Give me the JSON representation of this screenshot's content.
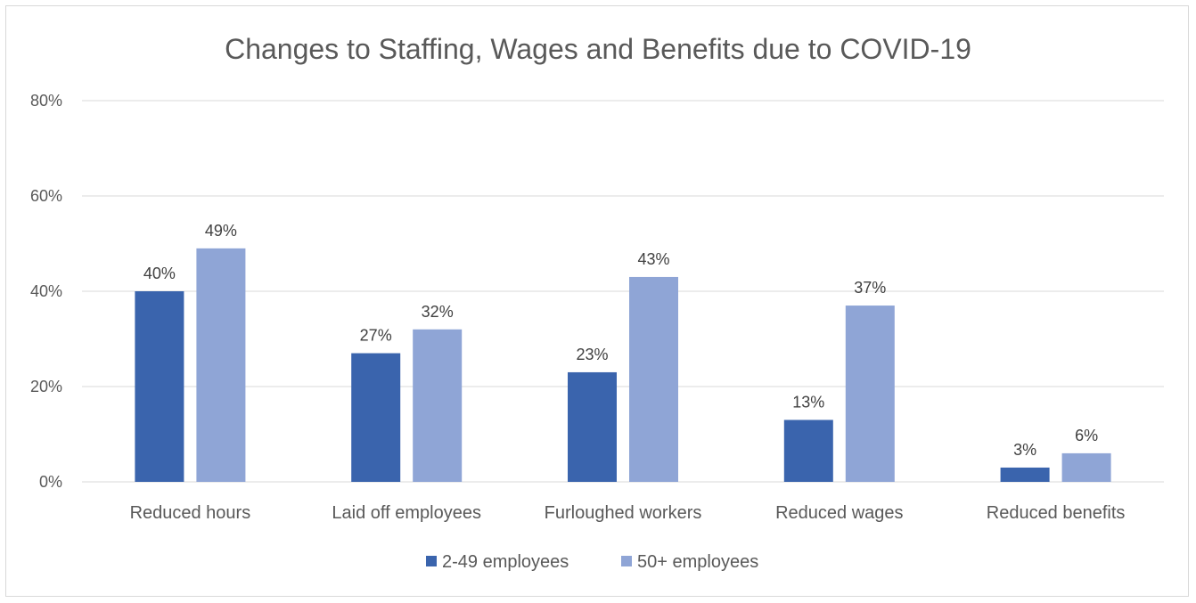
{
  "chart_data": {
    "type": "bar",
    "title": "Changes to Staffing, Wages and Benefits due to COVID-19",
    "categories": [
      "Reduced hours",
      "Laid off employees",
      "Furloughed workers",
      "Reduced wages",
      "Reduced benefits"
    ],
    "series": [
      {
        "name": "2-49 employees",
        "values": [
          40,
          27,
          23,
          13,
          3
        ],
        "labels": [
          "40%",
          "27%",
          "23%",
          "13%",
          "3%"
        ],
        "color": "#3a64ad"
      },
      {
        "name": "50+ employees",
        "values": [
          49,
          32,
          43,
          37,
          6
        ],
        "labels": [
          "49%",
          "32%",
          "43%",
          "37%",
          "6%"
        ],
        "color": "#8fa5d6"
      }
    ],
    "yticks": [
      0,
      20,
      40,
      60,
      80
    ],
    "ytick_labels": [
      "0%",
      "20%",
      "40%",
      "60%",
      "80%"
    ],
    "ylim": [
      0,
      80
    ],
    "grid": true,
    "legend_position": "bottom",
    "gridline_color": "#d9d9d9"
  }
}
